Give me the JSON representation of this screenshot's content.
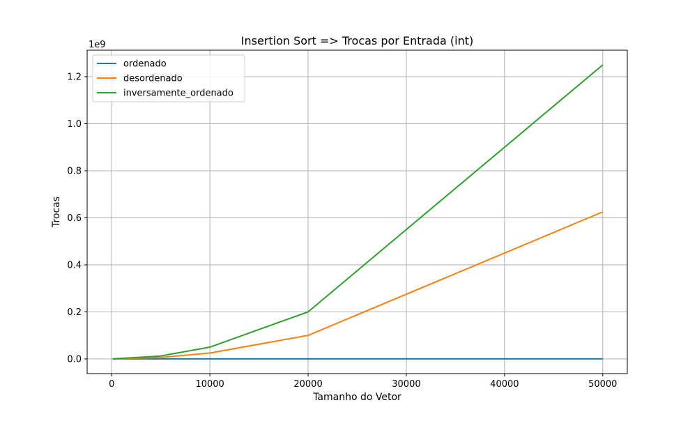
{
  "chart_data": {
    "type": "line",
    "title": "Insertion Sort => Trocas por Entrada (int)",
    "xlabel": "Tamanho do Vetor",
    "ylabel": "Trocas",
    "y_offset_label": "1e9",
    "y_scale": 1000000000,
    "x": [
      100,
      5000,
      10000,
      20000,
      50000
    ],
    "xlim": [
      -2500,
      52500
    ],
    "ylim": [
      -0.0625,
      1.3125
    ],
    "xticks": [
      0,
      10000,
      20000,
      30000,
      40000,
      50000
    ],
    "xtick_labels": [
      "0",
      "10000",
      "20000",
      "30000",
      "40000",
      "50000"
    ],
    "yticks": [
      0.0,
      0.2,
      0.4,
      0.6,
      0.8,
      1.0,
      1.2
    ],
    "ytick_labels": [
      "0.0",
      "0.2",
      "0.4",
      "0.6",
      "0.8",
      "1.0",
      "1.2"
    ],
    "grid": true,
    "legend_position": "top-left",
    "series": [
      {
        "name": "ordenado",
        "color": "#1f77b4",
        "values": [
          0,
          0,
          0,
          0,
          0
        ]
      },
      {
        "name": "desordenado",
        "color": "#ff7f0e",
        "values": [
          2.5e-06,
          0.00625,
          0.025,
          0.1,
          0.625
        ]
      },
      {
        "name": "inversamente_ordenado",
        "color": "#2ca02c",
        "values": [
          5e-06,
          0.0125,
          0.05,
          0.2,
          1.25
        ]
      }
    ]
  }
}
